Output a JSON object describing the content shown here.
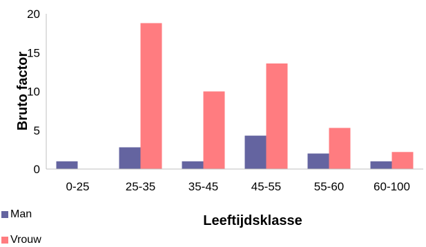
{
  "chart_data": {
    "type": "bar",
    "categories": [
      "0-25",
      "25-35",
      "35-45",
      "45-55",
      "55-60",
      "60-100"
    ],
    "series": [
      {
        "name": "Man",
        "values": [
          1.0,
          2.8,
          1.0,
          4.3,
          2.0,
          1.0
        ],
        "color": "#6464a0"
      },
      {
        "name": "Vrouw",
        "values": [
          0,
          18.8,
          10.0,
          13.6,
          5.3,
          2.2
        ],
        "color": "#ff7c80"
      }
    ],
    "title": "",
    "xlabel": "Leeftijdsklasse",
    "ylabel": "Bruto factor",
    "ylim": [
      0,
      20
    ],
    "yticks": [
      "0",
      "5",
      "10",
      "15",
      "20"
    ],
    "grid": false,
    "legend_position": "bottom-left"
  }
}
